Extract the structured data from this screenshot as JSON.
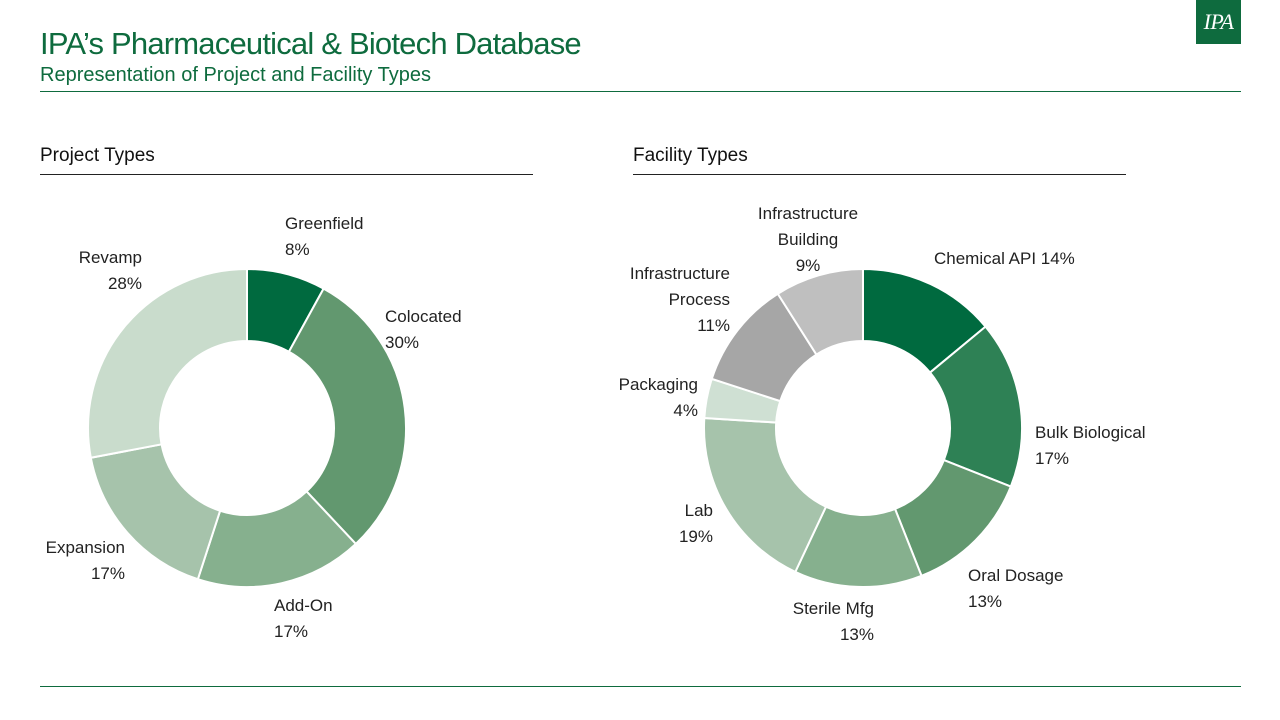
{
  "header": {
    "title": "IPA’s Pharmaceutical & Biotech Database",
    "subtitle": "Representation of Project and Facility Types",
    "logo_text": "IPA"
  },
  "colors": {
    "brand": "#0e6b3e"
  },
  "chart_data": [
    {
      "type": "pie",
      "donut": true,
      "title": "Project Types",
      "categories": [
        "Greenfield",
        "Colocated",
        "Add-On",
        "Expansion",
        "Revamp"
      ],
      "values": [
        8,
        30,
        17,
        17,
        28
      ],
      "value_labels": [
        "8%",
        "30%",
        "17%",
        "17%",
        "28%"
      ],
      "colors": [
        "#006a3f",
        "#62986f",
        "#86b08e",
        "#a6c3ab",
        "#c9dccc"
      ]
    },
    {
      "type": "pie",
      "donut": true,
      "title": "Facility Types",
      "categories": [
        "Chemical API",
        "Bulk Biological",
        "Oral Dosage",
        "Sterile Mfg",
        "Lab",
        "Packaging",
        "Infrastructure Process",
        "Infrastructure Building"
      ],
      "values": [
        14,
        17,
        13,
        13,
        19,
        4,
        11,
        9
      ],
      "value_labels": [
        "14%",
        "17%",
        "13%",
        "13%",
        "19%",
        "4%",
        "11%",
        "9%"
      ],
      "colors": [
        "#006a3f",
        "#2e8155",
        "#62986f",
        "#86b08e",
        "#a6c3ab",
        "#cfe0d3",
        "#a6a6a6",
        "#bfbfbf"
      ]
    }
  ]
}
